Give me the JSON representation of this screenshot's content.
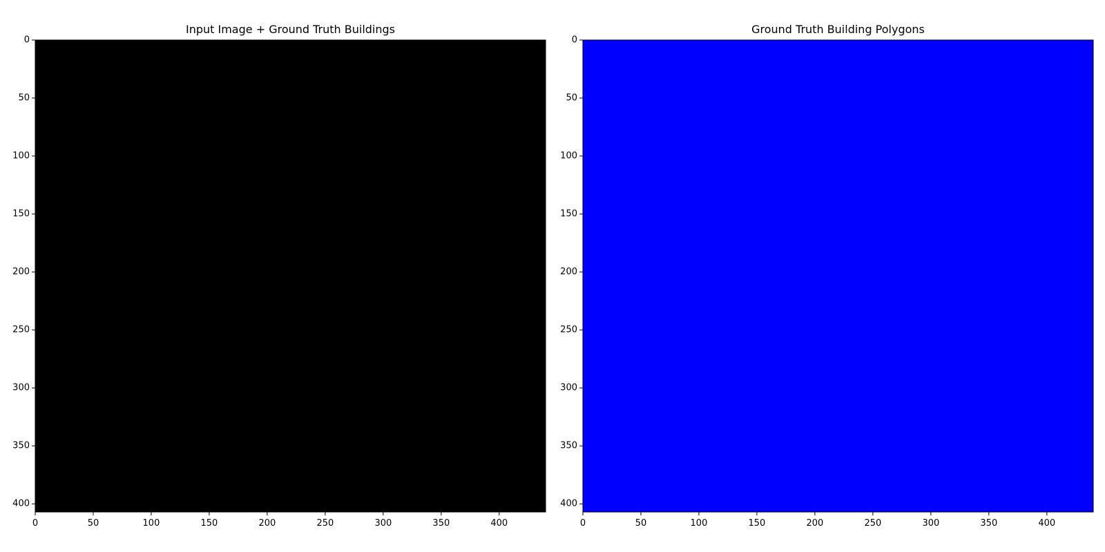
{
  "chart_data": [
    {
      "type": "heatmap",
      "title": "Input Image + Ground Truth Buildings",
      "fill_color": "#000000",
      "xlim": [
        0,
        440
      ],
      "ylim": [
        0,
        407
      ],
      "y_inverted": true,
      "x_ticks": [
        0,
        50,
        100,
        150,
        200,
        250,
        300,
        350,
        400
      ],
      "y_ticks": [
        0,
        50,
        100,
        150,
        200,
        250,
        300,
        350,
        400
      ],
      "xlabel": "",
      "ylabel": ""
    },
    {
      "type": "heatmap",
      "title": "Ground Truth Building Polygons",
      "fill_color": "#0000ff",
      "xlim": [
        0,
        440
      ],
      "ylim": [
        0,
        407
      ],
      "y_inverted": true,
      "x_ticks": [
        0,
        50,
        100,
        150,
        200,
        250,
        300,
        350,
        400
      ],
      "y_ticks": [
        0,
        50,
        100,
        150,
        200,
        250,
        300,
        350,
        400
      ],
      "xlabel": "",
      "ylabel": ""
    }
  ]
}
